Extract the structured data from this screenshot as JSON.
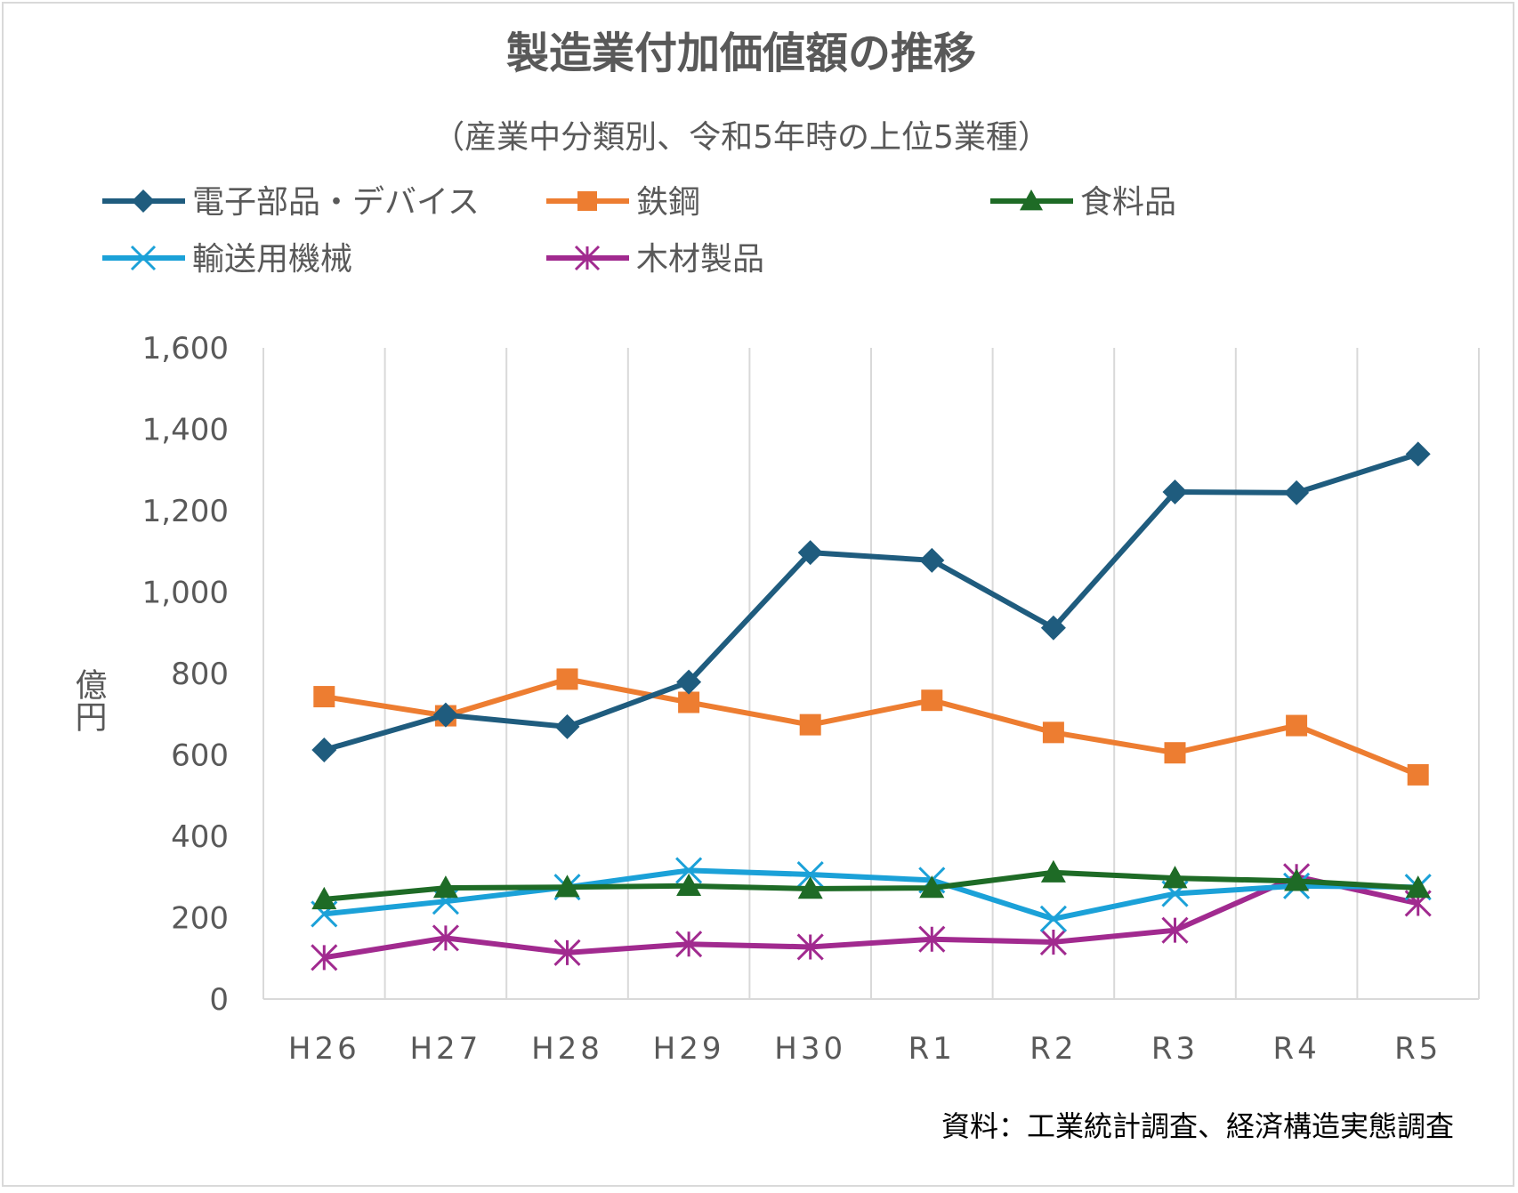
{
  "chart_data": {
    "type": "line",
    "title": "製造業付加価値額の推移",
    "subtitle": "（産業中分類別、令和5年時の上位5業種）",
    "ylabel": "億円",
    "xlabel": "",
    "source": "資料：工業統計調査、経済構造実態調査",
    "categories": [
      "H26",
      "H27",
      "H28",
      "H29",
      "H30",
      "R1",
      "R2",
      "R3",
      "R4",
      "R5"
    ],
    "ylim": [
      0,
      1600
    ],
    "yticks": [
      0,
      200,
      400,
      600,
      800,
      1000,
      1200,
      1400,
      1600
    ],
    "ytick_labels": [
      "0",
      "200",
      "400",
      "600",
      "800",
      "1,000",
      "1,200",
      "1,400",
      "1,600"
    ],
    "grid": "vertical",
    "legend_position": "top",
    "series": [
      {
        "name": "電子部品・デバイス",
        "color": "#1f5c7e",
        "marker": "diamond",
        "values": [
          612,
          698,
          669,
          779,
          1097,
          1078,
          912,
          1246,
          1244,
          1339
        ]
      },
      {
        "name": "鉄鋼",
        "color": "#ed7d31",
        "marker": "square",
        "values": [
          743,
          696,
          786,
          729,
          674,
          734,
          655,
          605,
          672,
          551
        ]
      },
      {
        "name": "食料品",
        "color": "#1e6b26",
        "marker": "triangle",
        "values": [
          245,
          273,
          275,
          278,
          271,
          273,
          311,
          297,
          290,
          273
        ]
      },
      {
        "name": "輸送用機械",
        "color": "#1ba1d8",
        "marker": "x",
        "values": [
          209,
          240,
          275,
          316,
          306,
          292,
          197,
          259,
          278,
          275
        ]
      },
      {
        "name": "木材製品",
        "color": "#a12a8f",
        "marker": "star",
        "values": [
          102,
          150,
          114,
          135,
          128,
          147,
          140,
          169,
          301,
          235
        ]
      }
    ]
  }
}
